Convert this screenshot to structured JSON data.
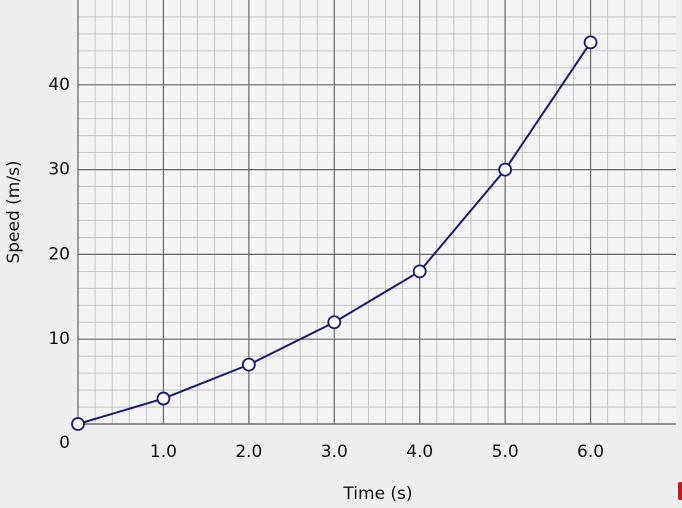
{
  "chart_data": {
    "type": "line",
    "x_label": "Time (s)",
    "y_label": "Speed (m/s)",
    "x": [
      0,
      1,
      2,
      3,
      4,
      5,
      6
    ],
    "series": [
      {
        "name": "Speed",
        "color": "#1a1a6e",
        "values": [
          0,
          3,
          7,
          12,
          18,
          30,
          45
        ]
      }
    ],
    "xlim": [
      0,
      7
    ],
    "ylim": [
      0,
      50
    ],
    "xticks": [
      {
        "value": 1,
        "label": "1.0"
      },
      {
        "value": 2,
        "label": "2.0"
      },
      {
        "value": 3,
        "label": "3.0"
      },
      {
        "value": 4,
        "label": "4.0"
      },
      {
        "value": 5,
        "label": "5.0"
      },
      {
        "value": 6,
        "label": "6.0"
      }
    ],
    "yticks": [
      0,
      10,
      20,
      30,
      40
    ],
    "grid": true,
    "minor_grid_divisions": 5
  }
}
